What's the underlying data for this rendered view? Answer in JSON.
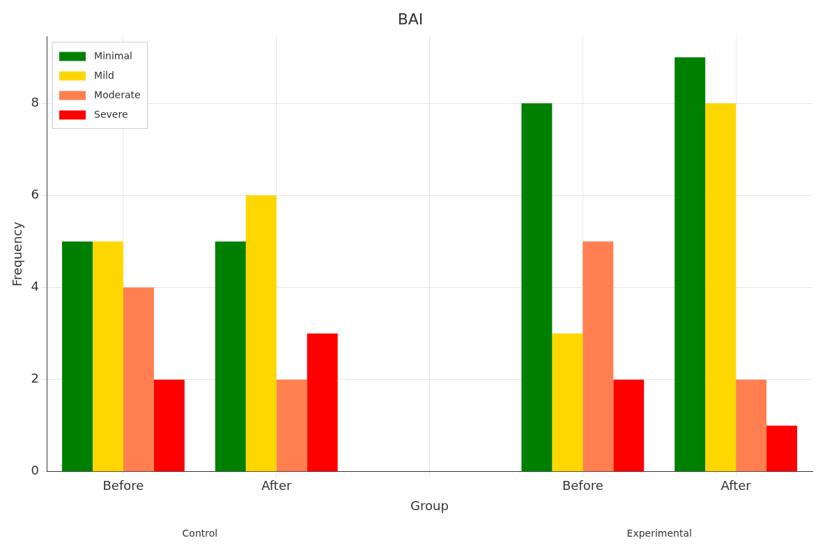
{
  "chart_data": {
    "type": "bar",
    "title": "BAI",
    "xlabel": "Group",
    "ylabel": "Frequency",
    "categories": [
      "Before",
      "After",
      null,
      "Before",
      "After"
    ],
    "series": [
      {
        "name": "Minimal",
        "color": "#008000",
        "values": [
          5,
          5,
          null,
          8,
          9
        ]
      },
      {
        "name": "Mild",
        "color": "#ffd700",
        "values": [
          5,
          6,
          null,
          3,
          8
        ]
      },
      {
        "name": "Moderate",
        "color": "#ff7f50",
        "values": [
          4,
          2,
          null,
          5,
          2
        ]
      },
      {
        "name": "Severe",
        "color": "#ff0000",
        "values": [
          2,
          3,
          null,
          2,
          1
        ]
      }
    ],
    "ylim": [
      0,
      9.45
    ],
    "yticks": [
      0,
      2,
      4,
      6,
      8
    ],
    "grid": true,
    "legend": "top left",
    "annotations": [
      "Control",
      "Experimental"
    ]
  }
}
